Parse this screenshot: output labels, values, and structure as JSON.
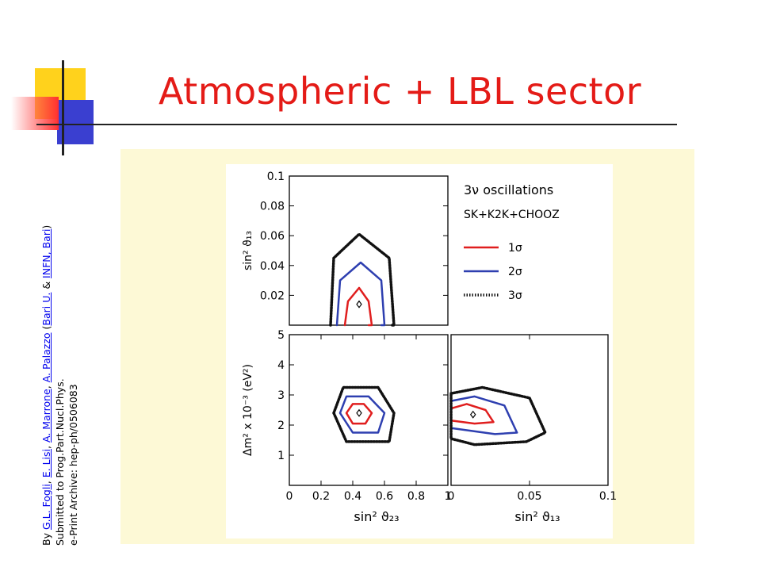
{
  "slide": {
    "title": "Atmospheric + LBL sector",
    "credit": {
      "prefix": "By ",
      "authors": [
        "G.L. Fogli",
        "E. Lisi",
        "A. Marrone",
        "A. Palazzo"
      ],
      "affil_open": " (",
      "affiliations": [
        "Bari U.",
        "INFN, Bari"
      ],
      "affil_sep": " & ",
      "affil_close": ")",
      "line2": "Submitted to Prog.Part.Nucl.Phys.",
      "line3": "e-Print Archive: hep-ph/0506083"
    }
  },
  "chart_data": [
    {
      "type": "line",
      "panel": "top",
      "xlim": [
        0,
        1
      ],
      "ylim": [
        0,
        0.1
      ],
      "ylabel": "sin² ϑ₁₃",
      "yticks": [
        "0.02",
        "0.04",
        "0.06",
        "0.08",
        "0.1"
      ],
      "legend": {
        "title": "3ν oscillations",
        "subtitle": "SK+K2K+CHOOZ",
        "entries": [
          {
            "label": "1σ",
            "color": "#e01e1e"
          },
          {
            "label": "2σ",
            "color": "#2e3fb0"
          },
          {
            "label": "3σ",
            "color": "#111111"
          }
        ]
      },
      "best_fit": {
        "x": 0.44,
        "y": 0.014
      },
      "series": [
        {
          "name": "1σ",
          "color": "#e01e1e",
          "x": [
            0.35,
            0.37,
            0.44,
            0.5,
            0.52,
            0.5
          ],
          "y": [
            0.0,
            0.016,
            0.025,
            0.016,
            0.0,
            0.0
          ]
        },
        {
          "name": "2σ",
          "color": "#2e3fb0",
          "x": [
            0.3,
            0.32,
            0.45,
            0.58,
            0.6,
            0.58
          ],
          "y": [
            0.0,
            0.03,
            0.042,
            0.03,
            0.0,
            0.0
          ]
        },
        {
          "name": "3σ",
          "color": "#111111",
          "x": [
            0.26,
            0.28,
            0.44,
            0.63,
            0.66,
            0.64
          ],
          "y": [
            0.0,
            0.045,
            0.061,
            0.045,
            0.0,
            0.0
          ]
        }
      ]
    },
    {
      "type": "line",
      "panel": "bottom-left",
      "xlabel": "sin² ϑ₂₃",
      "ylabel": "Δm² x 10⁻³ (eV²)",
      "xlim": [
        0,
        1
      ],
      "ylim": [
        0,
        5
      ],
      "xticks": [
        "0",
        "0.2",
        "0.4",
        "0.6",
        "0.8",
        "1"
      ],
      "yticks": [
        "1",
        "2",
        "3",
        "4",
        "5"
      ],
      "best_fit": {
        "x": 0.44,
        "y": 2.4
      },
      "series": [
        {
          "name": "1σ",
          "color": "#e01e1e",
          "x": [
            0.36,
            0.4,
            0.47,
            0.52,
            0.48,
            0.4,
            0.36
          ],
          "y": [
            2.4,
            2.7,
            2.7,
            2.4,
            2.05,
            2.05,
            2.4
          ]
        },
        {
          "name": "2σ",
          "color": "#2e3fb0",
          "x": [
            0.32,
            0.36,
            0.5,
            0.6,
            0.56,
            0.4,
            0.32
          ],
          "y": [
            2.4,
            2.95,
            2.95,
            2.4,
            1.75,
            1.75,
            2.4
          ]
        },
        {
          "name": "3σ",
          "color": "#111111",
          "x": [
            0.28,
            0.34,
            0.56,
            0.66,
            0.63,
            0.36,
            0.28
          ],
          "y": [
            2.4,
            3.25,
            3.25,
            2.4,
            1.45,
            1.45,
            2.4
          ]
        }
      ]
    },
    {
      "type": "line",
      "panel": "bottom-right",
      "xlabel": "sin² ϑ₁₃",
      "xlim": [
        0,
        0.1
      ],
      "ylim": [
        0,
        5
      ],
      "xticks": [
        "0",
        "0.05",
        "0.1"
      ],
      "best_fit": {
        "x": 0.014,
        "y": 2.35
      },
      "series": [
        {
          "name": "1σ",
          "color": "#e01e1e",
          "x": [
            0.0,
            0.01,
            0.022,
            0.027,
            0.015,
            0.0
          ],
          "y": [
            2.55,
            2.7,
            2.5,
            2.1,
            2.05,
            2.15
          ]
        },
        {
          "name": "2σ",
          "color": "#2e3fb0",
          "x": [
            0.0,
            0.015,
            0.034,
            0.042,
            0.028,
            0.0
          ],
          "y": [
            2.8,
            2.95,
            2.65,
            1.75,
            1.7,
            1.9
          ]
        },
        {
          "name": "3σ",
          "color": "#111111",
          "x": [
            0.0,
            0.02,
            0.05,
            0.06,
            0.048,
            0.015,
            0.0
          ],
          "y": [
            3.05,
            3.25,
            2.9,
            1.75,
            1.45,
            1.35,
            1.55
          ]
        }
      ]
    }
  ],
  "colors": {
    "title": "#e41b17",
    "link": "#0000ee",
    "panel_background": "#fdf9d6",
    "deco_yellow": "#ffd21c",
    "deco_blue": "#3a3fd0",
    "deco_red": "#ff3030"
  }
}
